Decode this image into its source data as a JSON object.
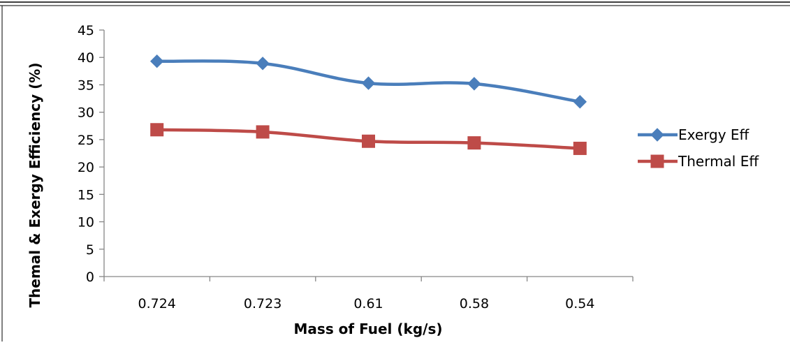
{
  "chart_data": {
    "type": "line",
    "title": "",
    "xlabel": "Mass of Fuel (kg/s)",
    "ylabel": "Themal & Exergy Efficiency (%)",
    "categories": [
      "0.724",
      "0.723",
      "0.61",
      "0.58",
      "0.54"
    ],
    "ylim": [
      0,
      45
    ],
    "yticks": [
      0,
      5,
      10,
      15,
      20,
      25,
      30,
      35,
      40,
      45
    ],
    "grid": false,
    "legend_position": "right",
    "series": [
      {
        "name": "Exergy Eff",
        "values": [
          39.3,
          38.9,
          35.3,
          35.2,
          31.9
        ],
        "color": "#4a7ebb",
        "marker": "diamond"
      },
      {
        "name": "Thermal Eff",
        "values": [
          26.8,
          26.4,
          24.7,
          24.4,
          23.4
        ],
        "color": "#be4b48",
        "marker": "square"
      }
    ]
  }
}
